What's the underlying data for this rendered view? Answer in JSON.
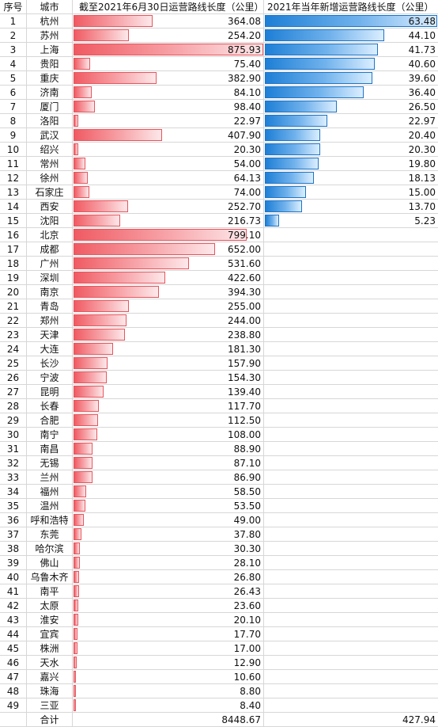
{
  "headers": {
    "no": "序号",
    "city": "城市",
    "total": "截至2021年6月30日运营路线长度（公里）",
    "new": "2021年当年新增运营路线长度（公里）"
  },
  "colors": {
    "red_bar": "#f05a62",
    "blue_bar": "#1e7fd6"
  },
  "rows": [
    {
      "no": "1",
      "city": "杭州",
      "total": "364.08",
      "new": "63.48"
    },
    {
      "no": "2",
      "city": "苏州",
      "total": "254.20",
      "new": "44.10"
    },
    {
      "no": "3",
      "city": "上海",
      "total": "875.93",
      "new": "41.73"
    },
    {
      "no": "4",
      "city": "贵阳",
      "total": "75.40",
      "new": "40.60"
    },
    {
      "no": "5",
      "city": "重庆",
      "total": "382.90",
      "new": "39.60"
    },
    {
      "no": "6",
      "city": "济南",
      "total": "84.10",
      "new": "36.40"
    },
    {
      "no": "7",
      "city": "厦门",
      "total": "98.40",
      "new": "26.50"
    },
    {
      "no": "8",
      "city": "洛阳",
      "total": "22.97",
      "new": "22.97"
    },
    {
      "no": "9",
      "city": "武汉",
      "total": "407.90",
      "new": "20.40"
    },
    {
      "no": "10",
      "city": "绍兴",
      "total": "20.30",
      "new": "20.30"
    },
    {
      "no": "11",
      "city": "常州",
      "total": "54.00",
      "new": "19.80"
    },
    {
      "no": "12",
      "city": "徐州",
      "total": "64.13",
      "new": "18.13"
    },
    {
      "no": "13",
      "city": "石家庄",
      "total": "74.00",
      "new": "15.00"
    },
    {
      "no": "14",
      "city": "西安",
      "total": "252.70",
      "new": "13.70"
    },
    {
      "no": "15",
      "city": "沈阳",
      "total": "216.73",
      "new": "5.23"
    },
    {
      "no": "16",
      "city": "北京",
      "total": "799.10",
      "new": ""
    },
    {
      "no": "17",
      "city": "成都",
      "total": "652.00",
      "new": ""
    },
    {
      "no": "18",
      "city": "广州",
      "total": "531.60",
      "new": ""
    },
    {
      "no": "19",
      "city": "深圳",
      "total": "422.60",
      "new": ""
    },
    {
      "no": "20",
      "city": "南京",
      "total": "394.30",
      "new": ""
    },
    {
      "no": "21",
      "city": "青岛",
      "total": "255.00",
      "new": ""
    },
    {
      "no": "22",
      "city": "郑州",
      "total": "244.00",
      "new": ""
    },
    {
      "no": "23",
      "city": "天津",
      "total": "238.80",
      "new": ""
    },
    {
      "no": "24",
      "city": "大连",
      "total": "181.30",
      "new": ""
    },
    {
      "no": "25",
      "city": "长沙",
      "total": "157.90",
      "new": ""
    },
    {
      "no": "26",
      "city": "宁波",
      "total": "154.30",
      "new": ""
    },
    {
      "no": "27",
      "city": "昆明",
      "total": "139.40",
      "new": ""
    },
    {
      "no": "28",
      "city": "长春",
      "total": "117.70",
      "new": ""
    },
    {
      "no": "29",
      "city": "合肥",
      "total": "112.50",
      "new": ""
    },
    {
      "no": "30",
      "city": "南宁",
      "total": "108.00",
      "new": ""
    },
    {
      "no": "31",
      "city": "南昌",
      "total": "88.90",
      "new": ""
    },
    {
      "no": "32",
      "city": "无锡",
      "total": "87.10",
      "new": ""
    },
    {
      "no": "33",
      "city": "兰州",
      "total": "86.90",
      "new": ""
    },
    {
      "no": "34",
      "city": "福州",
      "total": "58.50",
      "new": ""
    },
    {
      "no": "35",
      "city": "温州",
      "total": "53.50",
      "new": ""
    },
    {
      "no": "36",
      "city": "呼和浩特",
      "total": "49.00",
      "new": ""
    },
    {
      "no": "37",
      "city": "东莞",
      "total": "37.80",
      "new": ""
    },
    {
      "no": "38",
      "city": "哈尔滨",
      "total": "30.30",
      "new": ""
    },
    {
      "no": "39",
      "city": "佛山",
      "total": "28.10",
      "new": ""
    },
    {
      "no": "40",
      "city": "乌鲁木齐",
      "total": "26.80",
      "new": ""
    },
    {
      "no": "41",
      "city": "南平",
      "total": "26.43",
      "new": ""
    },
    {
      "no": "42",
      "city": "太原",
      "total": "23.60",
      "new": ""
    },
    {
      "no": "43",
      "city": "淮安",
      "total": "20.10",
      "new": ""
    },
    {
      "no": "44",
      "city": "宜宾",
      "total": "17.70",
      "new": ""
    },
    {
      "no": "45",
      "city": "株洲",
      "total": "17.00",
      "new": ""
    },
    {
      "no": "46",
      "city": "天水",
      "total": "12.90",
      "new": ""
    },
    {
      "no": "47",
      "city": "嘉兴",
      "total": "10.60",
      "new": ""
    },
    {
      "no": "48",
      "city": "珠海",
      "total": "8.80",
      "new": ""
    },
    {
      "no": "49",
      "city": "三亚",
      "total": "8.40",
      "new": ""
    }
  ],
  "sum_row": {
    "no": "",
    "city": "合计",
    "total": "8448.67",
    "new": "427.94"
  }
}
